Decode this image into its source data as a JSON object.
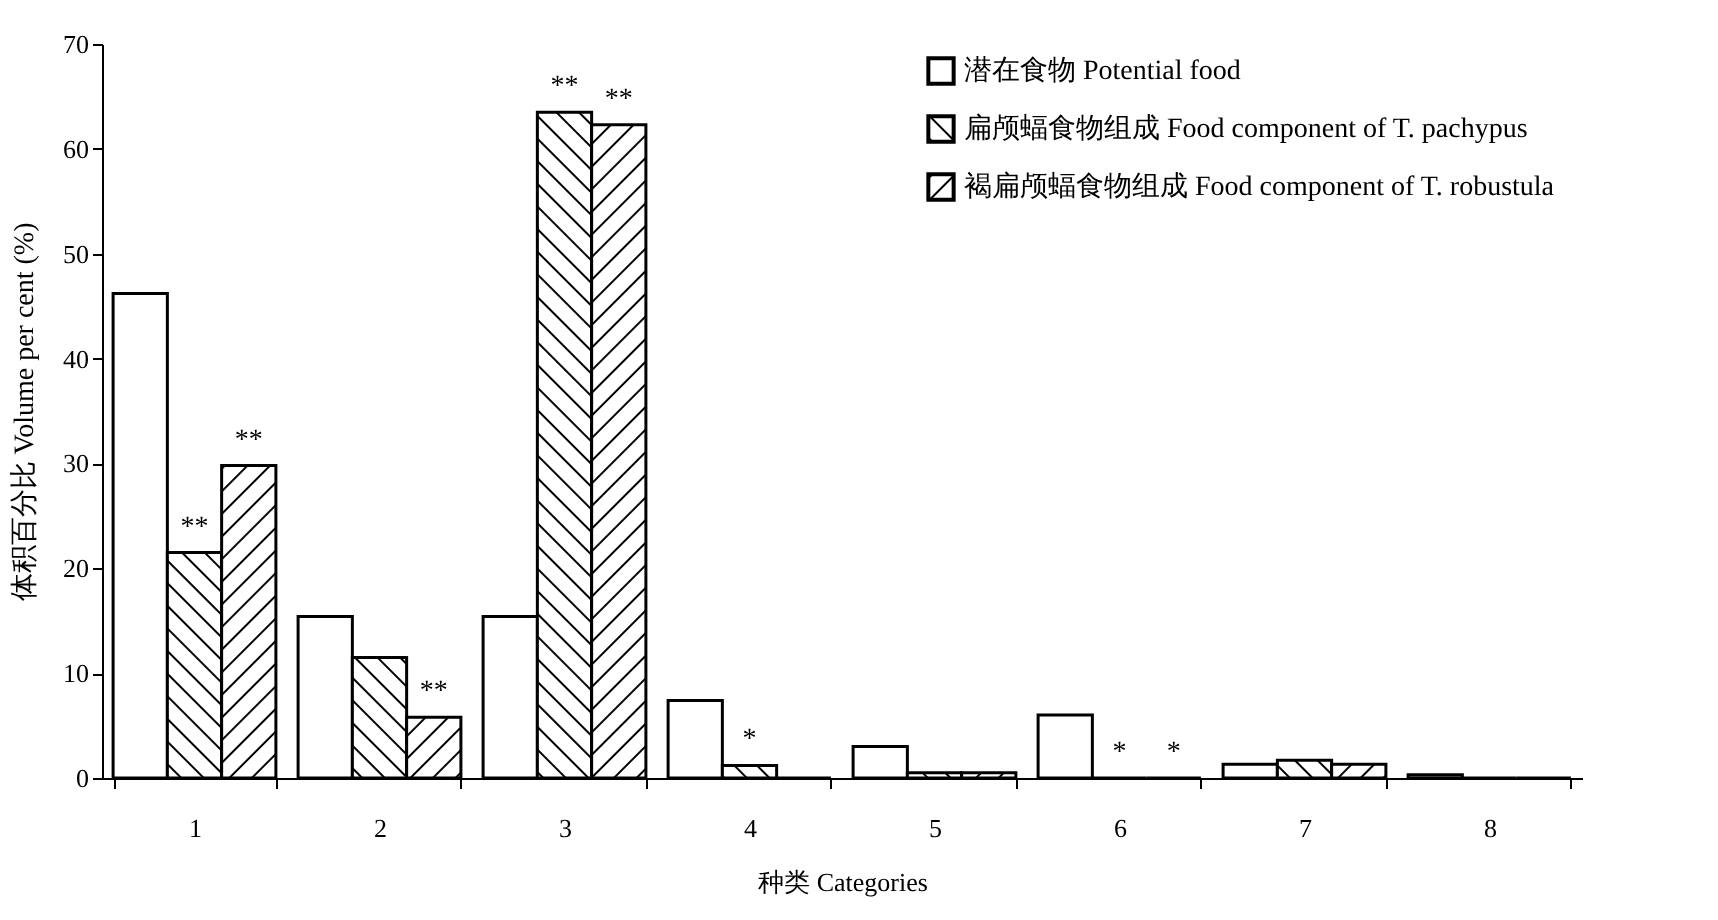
{
  "chart_data": {
    "type": "bar",
    "xlabel": "种类   Categories",
    "ylabel": "体积百分比    Volume per cent (%)",
    "categories": [
      "1",
      "2",
      "3",
      "4",
      "5",
      "6",
      "7",
      "8"
    ],
    "series": [
      {
        "name": "潜在食物   Potential food",
        "color": "#ffffff",
        "values": [
          46.2,
          15.4,
          15.4,
          7.4,
          3.0,
          6.0,
          1.3,
          0.3
        ]
      },
      {
        "name": "扁颅蝠食物组成   Food component of T. pachypus",
        "color": "#000000",
        "values": [
          21.5,
          11.5,
          63.5,
          1.2,
          0.5,
          0,
          1.7,
          0
        ],
        "value_labels": [
          "**",
          null,
          "**",
          "*",
          null,
          "*",
          null,
          null
        ]
      },
      {
        "name": "褐扁颅蝠食物组成   Food component of T. robustula",
        "color": "#000000",
        "values": [
          29.8,
          5.8,
          62.3,
          0,
          0.5,
          0,
          1.3,
          0
        ],
        "value_labels": [
          "**",
          "**",
          "**",
          null,
          null,
          "*",
          null,
          null
        ]
      }
    ],
    "ylim": [
      0,
      70
    ],
    "yticks": [
      0,
      10,
      20,
      30,
      40,
      50,
      60,
      70
    ],
    "grid": false,
    "legend": "top right"
  }
}
